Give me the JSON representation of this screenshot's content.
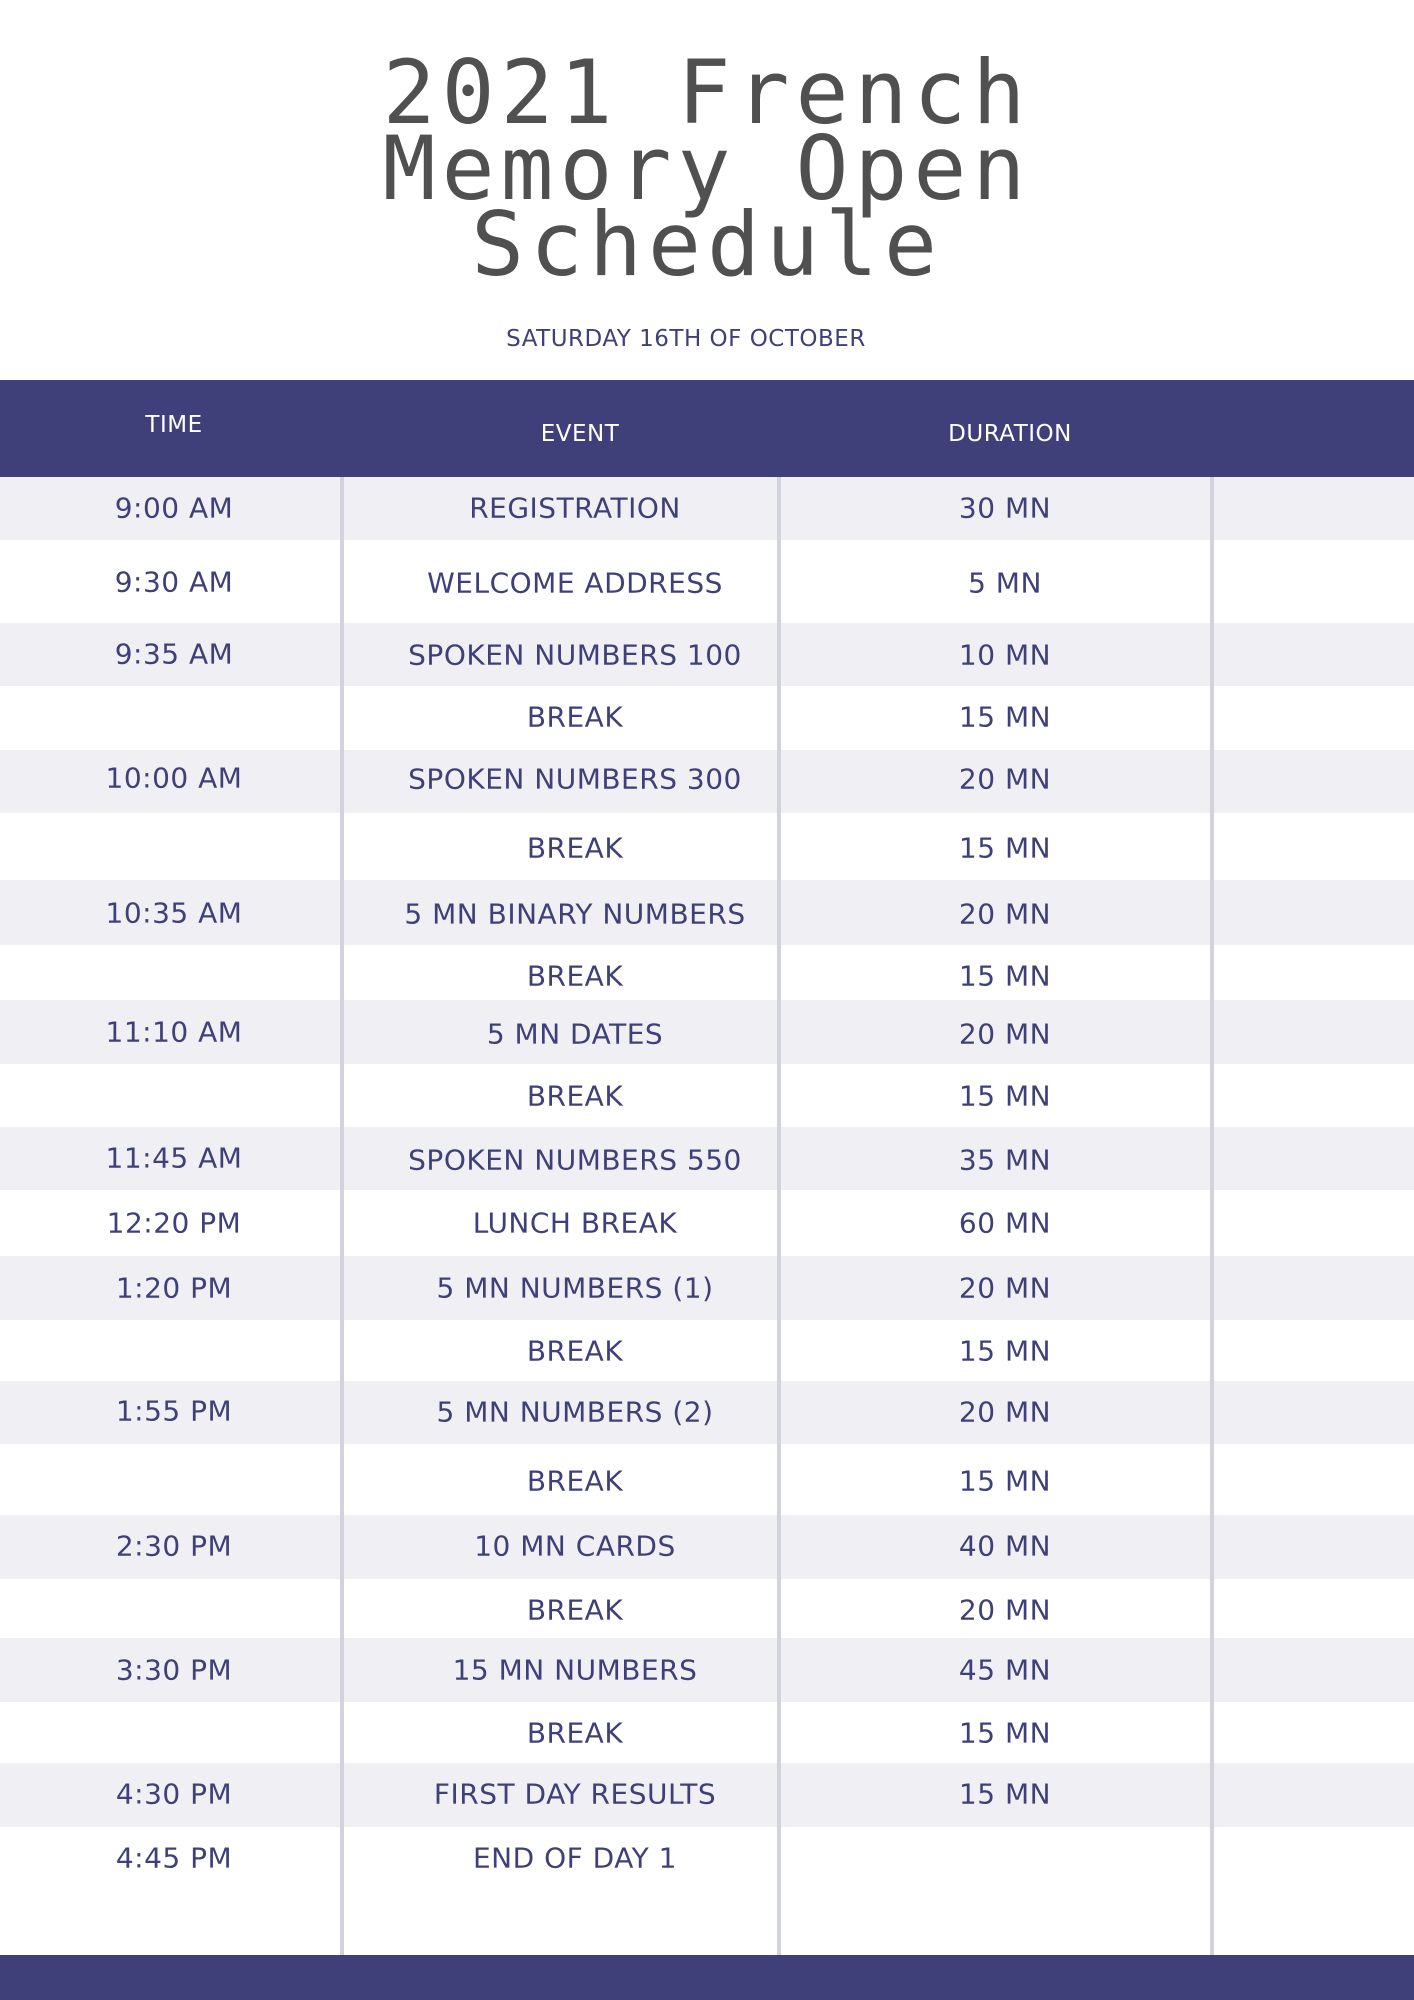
{
  "title": {
    "line1": "2021 French",
    "line2": "Memory Open",
    "line3": "Schedule"
  },
  "subtitle": "SATURDAY 16TH OF OCTOBER",
  "columns": {
    "time": "TIME",
    "event": "EVENT",
    "duration": "DURATION"
  },
  "rows": [
    {
      "time": "9:00 AM",
      "event": "REGISTRATION",
      "duration": "30 MN"
    },
    {
      "time": "9:30 AM",
      "event": "WELCOME ADDRESS",
      "duration": "5 MN"
    },
    {
      "time": "9:35 AM",
      "event": "SPOKEN NUMBERS 100",
      "duration": "10 MN"
    },
    {
      "time": "",
      "event": "BREAK",
      "duration": "15 MN"
    },
    {
      "time": "10:00 AM",
      "event": "SPOKEN NUMBERS 300",
      "duration": "20 MN"
    },
    {
      "time": "",
      "event": "BREAK",
      "duration": "15 MN"
    },
    {
      "time": "10:35 AM",
      "event": "5 MN BINARY NUMBERS",
      "duration": "20 MN"
    },
    {
      "time": "",
      "event": "BREAK",
      "duration": "15 MN"
    },
    {
      "time": "11:10 AM",
      "event": "5 MN DATES",
      "duration": "20 MN"
    },
    {
      "time": "",
      "event": "BREAK",
      "duration": "15 MN"
    },
    {
      "time": "11:45 AM",
      "event": "SPOKEN NUMBERS 550",
      "duration": "35 MN"
    },
    {
      "time": "12:20 PM",
      "event": "LUNCH BREAK",
      "duration": "60 MN"
    },
    {
      "time": "1:20 PM",
      "event": "5 MN NUMBERS (1)",
      "duration": "20 MN"
    },
    {
      "time": "",
      "event": "BREAK",
      "duration": "15 MN"
    },
    {
      "time": "1:55 PM",
      "event": "5 MN NUMBERS (2)",
      "duration": "20 MN"
    },
    {
      "time": "",
      "event": "BREAK",
      "duration": "15 MN"
    },
    {
      "time": "2:30 PM",
      "event": "10 MN CARDS",
      "duration": "40 MN"
    },
    {
      "time": "",
      "event": "BREAK",
      "duration": "20 MN"
    },
    {
      "time": "3:30 PM",
      "event": "15 MN NUMBERS",
      "duration": "45 MN"
    },
    {
      "time": "",
      "event": "BREAK",
      "duration": "15 MN"
    },
    {
      "time": "4:30 PM",
      "event": "FIRST DAY RESULTS",
      "duration": "15 MN"
    },
    {
      "time": "4:45 PM",
      "event": "END OF DAY 1",
      "duration": ""
    }
  ],
  "colors": {
    "accent": "#3f4079",
    "text": "#3f4078",
    "title": "#505050",
    "shade": "#efeff4",
    "divider": "#d3d3de"
  }
}
